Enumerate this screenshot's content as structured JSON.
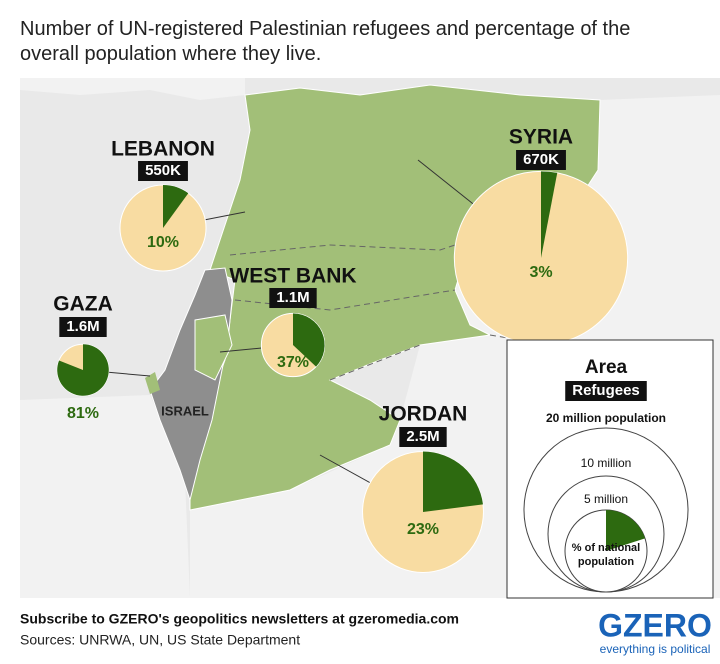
{
  "title": "Number of UN-registered Palestinian refugees and percentage of the overall population where they live.",
  "regions": [
    {
      "name": "LEBANON",
      "refugees": 550000,
      "refugees_label": "550K",
      "share": 10,
      "share_label": "10%"
    },
    {
      "name": "SYRIA",
      "refugees": 670000,
      "refugees_label": "670K",
      "share": 3,
      "share_label": "3%"
    },
    {
      "name": "WEST BANK",
      "refugees": 1100000,
      "refugees_label": "1.1M",
      "share": 37,
      "share_label": "37%"
    },
    {
      "name": "GAZA",
      "refugees": 1600000,
      "refugees_label": "1.6M",
      "share": 81,
      "share_label": "81%"
    },
    {
      "name": "JORDAN",
      "refugees": 2500000,
      "refugees_label": "2.5M",
      "share": 23,
      "share_label": "23%"
    }
  ],
  "map_labels": {
    "israel": "ISRAEL"
  },
  "legend": {
    "title": "Area",
    "subtitle": "Refugees",
    "sizes": [
      {
        "value": 20000000,
        "label": "20 million population"
      },
      {
        "value": 10000000,
        "label": "10 million"
      },
      {
        "value": 5000000,
        "label": "5 million"
      }
    ],
    "note": [
      "% of national",
      "population"
    ]
  },
  "footer": {
    "subscribe": "Subscribe to GZERO's geopolitics newsletters at gzeromedia.com",
    "sources": "Sources: UNRWA, UN, US State Department",
    "logo": "GZERO",
    "tagline": "everything is political"
  }
}
